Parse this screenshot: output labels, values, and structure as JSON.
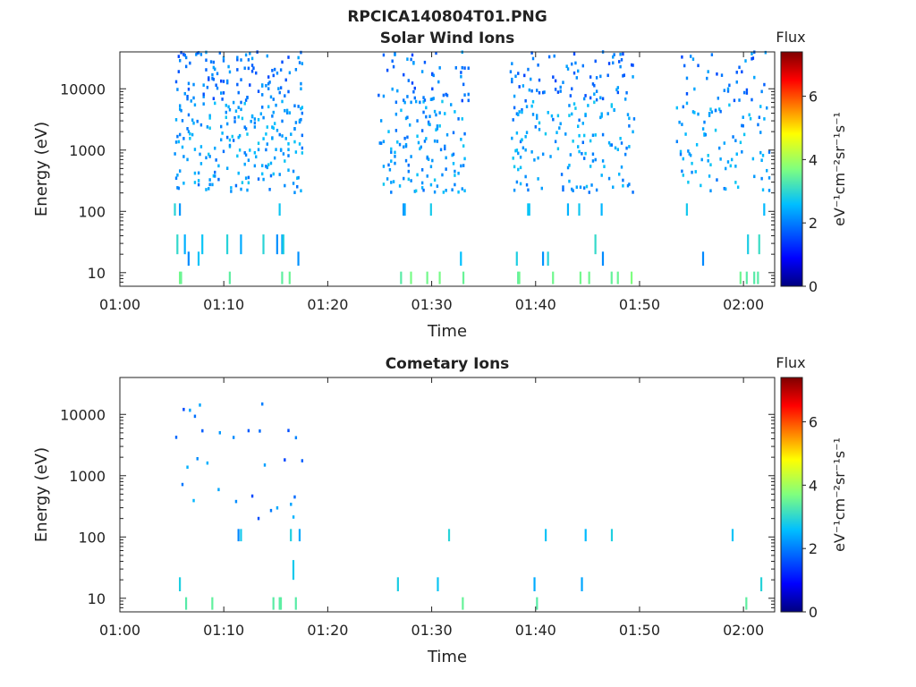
{
  "figure": {
    "title": "RPCICA140804T01.PNG"
  },
  "chart_data": [
    {
      "type": "heatmap",
      "title": "Solar Wind Ions",
      "xlabel": "Time",
      "ylabel": "Energy (eV)",
      "y_scale": "log",
      "ylim": [
        6,
        40000
      ],
      "xlim": [
        "01:00",
        "02:03"
      ],
      "x_ticks": [
        "01:00",
        "01:10",
        "01:20",
        "01:30",
        "01:40",
        "01:50",
        "02:00"
      ],
      "y_ticks": [
        "10",
        "100",
        "1000",
        "10000"
      ],
      "colorbar": {
        "label": "Flux",
        "unit": "eV⁻¹cm⁻²sr⁻¹s⁻¹",
        "range": [
          0,
          7.4
        ],
        "ticks": [
          "0",
          "2",
          "4",
          "6"
        ],
        "colormap": "jet"
      },
      "data_gaps": [
        [
          "01:18",
          "01:25"
        ],
        [
          "01:34",
          "01:38"
        ],
        [
          "01:50",
          "01:55"
        ]
      ],
      "bursts": [
        {
          "start_min": 5.2,
          "end_min": 17.6,
          "density": 1.0
        },
        {
          "start_min": 24.8,
          "end_min": 33.5,
          "density": 0.8
        },
        {
          "start_min": 37.5,
          "end_min": 49.5,
          "density": 0.75
        },
        {
          "start_min": 53.5,
          "end_min": 62.5,
          "density": 0.6
        }
      ],
      "seed": 11
    },
    {
      "type": "heatmap",
      "title": "Cometary Ions",
      "xlabel": "Time",
      "ylabel": "Energy (eV)",
      "y_scale": "log",
      "ylim": [
        6,
        40000
      ],
      "xlim": [
        "01:00",
        "02:03"
      ],
      "x_ticks": [
        "01:00",
        "01:10",
        "01:20",
        "01:30",
        "01:40",
        "01:50",
        "02:00"
      ],
      "y_ticks": [
        "10",
        "100",
        "1000",
        "10000"
      ],
      "colorbar": {
        "label": "Flux",
        "unit": "eV⁻¹cm⁻²sr⁻¹s⁻¹",
        "range": [
          0,
          7.4
        ],
        "ticks": [
          "0",
          "2",
          "4",
          "6"
        ],
        "colormap": "jet"
      },
      "bursts": [
        {
          "start_min": 5.2,
          "end_min": 17.6,
          "density": 0.35
        },
        {
          "start_min": 24.5,
          "end_min": 33.0,
          "density": 0.25
        },
        {
          "start_min": 38.0,
          "end_min": 49.5,
          "density": 0.22
        },
        {
          "start_min": 55.5,
          "end_min": 62.5,
          "density": 0.12
        }
      ],
      "seed": 29
    }
  ]
}
